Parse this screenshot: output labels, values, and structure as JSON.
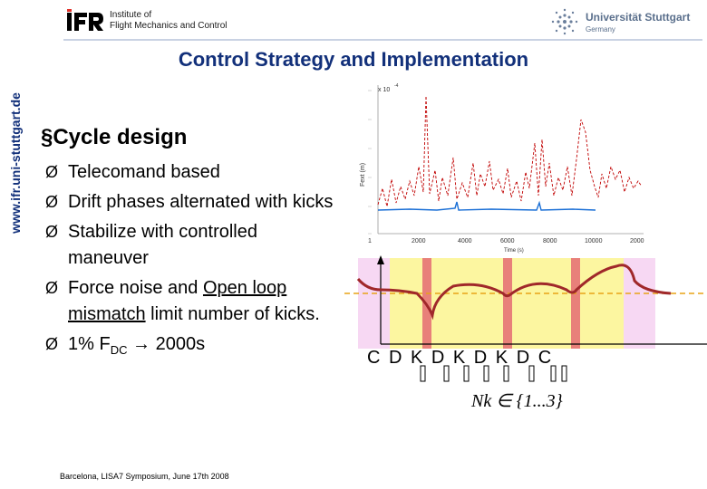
{
  "header": {
    "logo_text": "iFR",
    "institute_line1": "Institute of",
    "institute_line2": "Flight Mechanics and Control",
    "university_name": "Universität Stuttgart",
    "university_sub": "Germany"
  },
  "side_url": "www.ifr.uni-stuttgart.de",
  "slide": {
    "title": "Control Strategy and Implementation",
    "heading": "§Cycle design",
    "bullet_arrow": "Ø",
    "bullets": [
      {
        "text": "Telecomand based"
      },
      {
        "text": "Drift phases alternated with kicks"
      },
      {
        "text": "Stabilize with controlled maneuver"
      },
      {
        "pre": "Force noise and ",
        "link": "Open loop mismatch",
        "post": " limit number of kicks."
      },
      {
        "text_a": "1% F",
        "sub": "DC",
        "text_b": " → 2000s"
      }
    ],
    "footer": "Barcelona, LISA7 Symposium, June 17th 2008"
  },
  "plot": {
    "multiplier": "x 10",
    "exponent": "-4",
    "ylabel": "Fext (m)",
    "xlabel": "Time (s)",
    "xticks": [
      "1",
      "2000",
      "4000",
      "6000",
      "8000",
      "10000",
      "2000"
    ]
  },
  "cycle": {
    "letters": "C  D  K    D    K    D    K D  C",
    "nk": "Nk ∈ {1...3}"
  },
  "colors": {
    "title": "#12307a",
    "signal_red": "#c00000",
    "signal_blue": "#1a6fd6",
    "phase_yellow": "#fcf6a0",
    "phase_pink": "#f7d8f3",
    "kick_red": "#e8807a",
    "curve": "#a0282a",
    "dashed": "#e8a317"
  }
}
